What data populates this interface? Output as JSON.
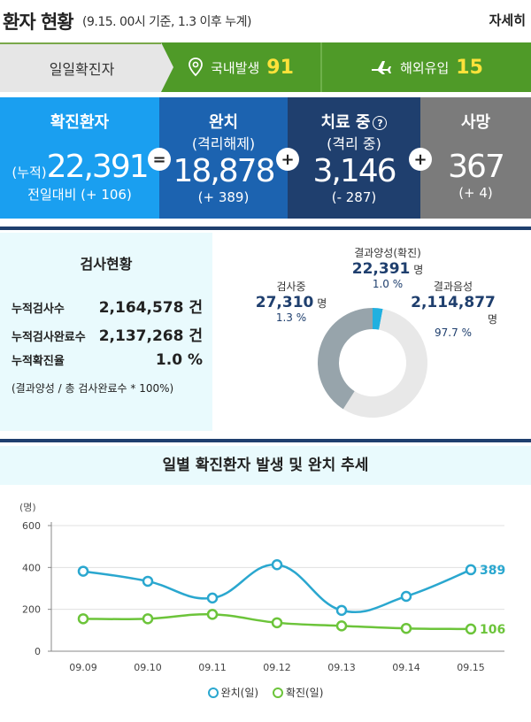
{
  "header": {
    "title": "환자 현황",
    "subtitle": "(9.15. 00시 기준, 1.3 이후 누계)",
    "more_label": "자세히"
  },
  "daily": {
    "label": "일일확진자",
    "domestic_label": "국내발생",
    "domestic_value": "91",
    "overseas_label": "해외유입",
    "overseas_value": "15"
  },
  "stats": {
    "confirmed": {
      "title": "확진환자",
      "prefix": "(누적)",
      "value": "22,391",
      "delta": "전일대비 (+ 106)"
    },
    "released": {
      "title": "완치",
      "subtitle": "(격리해제)",
      "value": "18,878",
      "delta": "(+ 389)"
    },
    "treating": {
      "title": "치료 중",
      "subtitle": "(격리 중)",
      "value": "3,146",
      "delta": "(- 287)"
    },
    "deceased": {
      "title": "사망",
      "value": "367",
      "delta": "(+ 4)"
    },
    "eq_sign": "=",
    "plus_sign": "+",
    "help_mark": "?"
  },
  "tests": {
    "title": "검사현황",
    "rows": [
      {
        "label": "누적검사수",
        "value": "2,164,578 건"
      },
      {
        "label": "누적검사완료수",
        "value": "2,137,268 건"
      },
      {
        "label": "누적확진율",
        "value": "1.0 %"
      }
    ],
    "note": "(결과양성 / 총 검사완료수 * 100%)"
  },
  "pie": {
    "positive": {
      "label": "결과양성(확진)",
      "value": "22,391",
      "unit": "명",
      "pct": "1.0 %",
      "share": 1.0
    },
    "testing": {
      "label": "검사중",
      "value": "27,310",
      "unit": "명",
      "pct": "1.3 %",
      "share": 1.3
    },
    "negative": {
      "label": "결과음성",
      "value": "2,114,877",
      "unit": "명",
      "pct": "97.7 %",
      "share": 97.7
    },
    "colors": {
      "positive": "#21b0e0",
      "testing": "#97a4ab",
      "negative": "#e8e8e8"
    }
  },
  "chart_title": "일별 확진환자 발생 및 완치 추세",
  "chart_data": {
    "type": "line",
    "ylabel": "(명)",
    "ylim": [
      0,
      600
    ],
    "yticks": [
      "0",
      "200",
      "400",
      "600"
    ],
    "categories": [
      "09.09",
      "09.10",
      "09.11",
      "09.12",
      "09.13",
      "09.14",
      "09.15"
    ],
    "series": [
      {
        "name": "완치(일)",
        "values": [
          382,
          334,
          254,
          413,
          195,
          262,
          389
        ],
        "color": "#2aa7cf",
        "end_label": "389"
      },
      {
        "name": "확진(일)",
        "values": [
          155,
          155,
          176,
          136,
          121,
          109,
          106
        ],
        "color": "#6cc43a",
        "end_label": "106"
      }
    ],
    "grid": true
  }
}
